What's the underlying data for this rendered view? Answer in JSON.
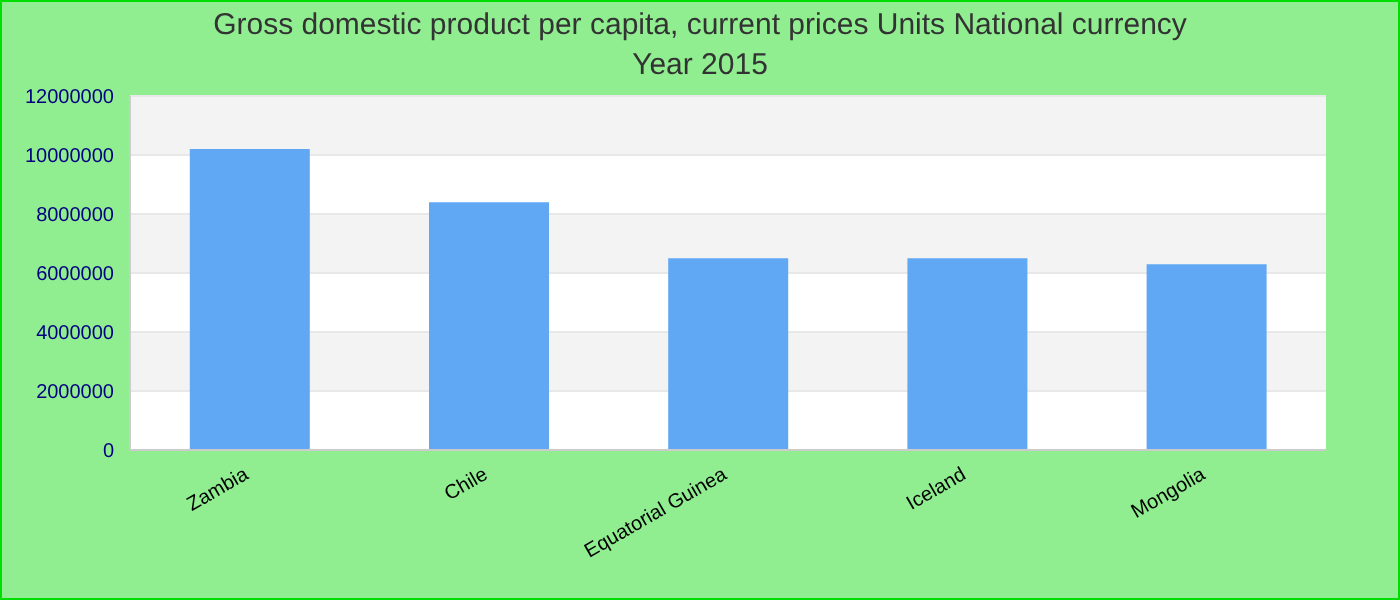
{
  "chart_data": {
    "type": "bar",
    "title": "Gross domestic product per capita, current prices Units National currency",
    "subtitle": "Year 2015",
    "categories": [
      "Zambia",
      "Chile",
      "Equatorial Guinea",
      "Iceland",
      "Mongolia"
    ],
    "values": [
      10200000,
      8400000,
      6500000,
      6500000,
      6300000
    ],
    "color": "#60a8f4",
    "ylim": [
      0,
      12000000
    ],
    "yticks": [
      0,
      2000000,
      4000000,
      6000000,
      8000000,
      10000000,
      12000000
    ],
    "grid": "y",
    "legend": false
  }
}
